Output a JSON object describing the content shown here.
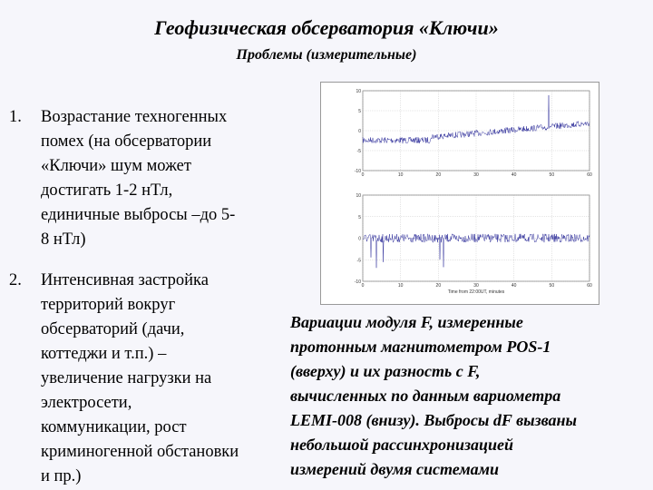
{
  "header": {
    "title": "Геофизическая обсерватория «Ключи»",
    "subtitle": "Проблемы (измерительные)"
  },
  "list": {
    "items": [
      {
        "number": "1.",
        "lines": [
          "Возрастание техногенных",
          "помех (на обсерватории",
          "«Ключи» шум может",
          "достигать 1-2 нТл,",
          "единичные выбросы –до 5-",
          "8 нТл)"
        ]
      },
      {
        "number": "2.",
        "lines": [
          "Интенсивная застройка",
          "территорий вокруг",
          "обсерваторий (дачи,",
          "коттеджи и т.п.) –",
          "увеличение нагрузки на",
          "электросети,",
          "коммуникации, рост",
          "криминогенной обстановки",
          "и пр.)"
        ]
      }
    ]
  },
  "figure": {
    "x_ticks": [
      "0",
      "10",
      "20",
      "30",
      "40",
      "50",
      "60"
    ],
    "y_ticks": [
      "10",
      "5",
      "0",
      "-5",
      "-10"
    ],
    "x_label": "Time from 22:00UT, minutes"
  },
  "caption": {
    "lines": [
      "Вариации модуля F, измеренные",
      "протонным магнитометром POS-1",
      "(вверху) и их разность с F,",
      "вычисленных по данным вариометра",
      "LEMI-008 (внизу). Выбросы dF вызваны",
      "небольшой рассинхронизацией",
      "измерений двумя системами"
    ]
  }
}
